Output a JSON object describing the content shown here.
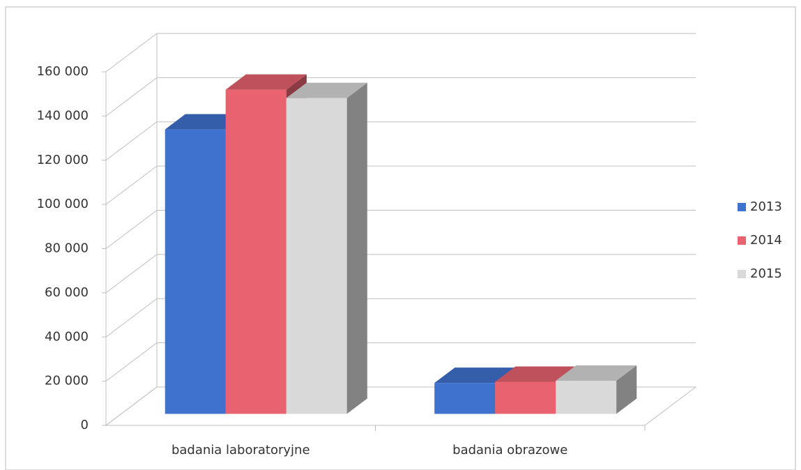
{
  "chart_data": {
    "type": "bar3d",
    "categories": [
      "badania laboratoryjne",
      "badania obrazowe"
    ],
    "series": [
      {
        "name": "2013",
        "color": "#3f72cf",
        "values": [
          128700,
          14000
        ]
      },
      {
        "name": "2014",
        "color": "#e8636f",
        "values": [
          146700,
          14500
        ]
      },
      {
        "name": "2015",
        "color": "#d9d9d9",
        "values": [
          142900,
          15000
        ]
      }
    ],
    "ylim": [
      0,
      160000
    ],
    "yticks": [
      0,
      {
        "value": 20000,
        "label": "20 000"
      },
      {
        "value": 40000,
        "label": "40 000"
      },
      {
        "value": 60000,
        "label": "60 000"
      },
      {
        "value": 80000,
        "label": "80 000"
      },
      {
        "value": 100000,
        "label": "100 000"
      },
      {
        "value": 120000,
        "label": "120 000"
      },
      {
        "value": 140000,
        "label": "140 000"
      },
      {
        "value": 160000,
        "label": "160 000"
      }
    ],
    "grid": true,
    "legend": "right"
  }
}
